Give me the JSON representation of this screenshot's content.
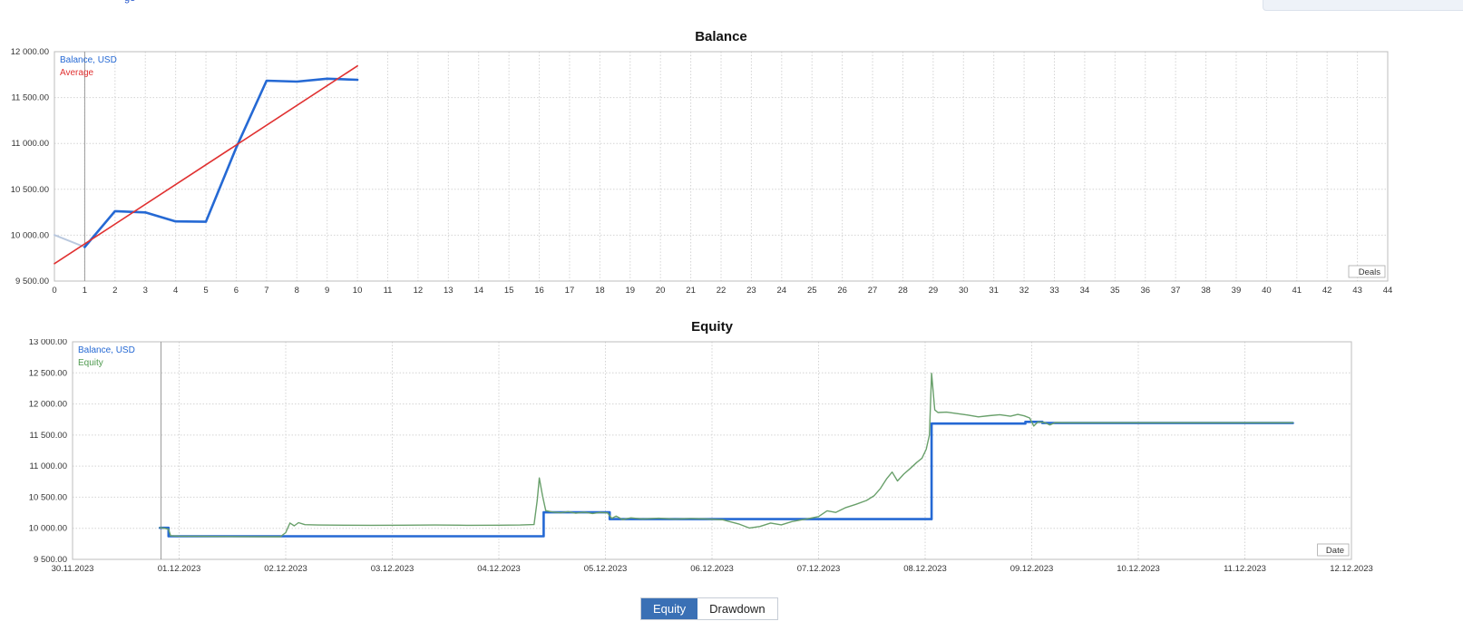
{
  "page": {
    "top_left_fragment": "ge"
  },
  "tabs": [
    {
      "label": "Equity"
    },
    {
      "label": "Drawdown"
    }
  ],
  "colors": {
    "balance_line": "#2569d4",
    "average_line": "#e03131",
    "equity_line": "#69a06b",
    "initial_segment": "#b9c8de",
    "grid": "#d4d4d4",
    "border": "#bdbdbd",
    "marker": "#9b9b9b",
    "tick_text": "#333333",
    "active_tab": "#3a70b5"
  },
  "chart_data": [
    {
      "type": "line",
      "title": "Balance",
      "xlabel": "Deals",
      "grid": true,
      "legend_position": "top-left",
      "legend": [
        {
          "label": "Balance, USD",
          "color": "#2569d4"
        },
        {
          "label": "Average",
          "color": "#e03131"
        }
      ],
      "xlim": [
        0,
        44
      ],
      "ylim": [
        9500,
        12000
      ],
      "marker_x": 1,
      "yticks": [
        {
          "v": 9500,
          "l": "9 500.00"
        },
        {
          "v": 10000,
          "l": "10 000.00"
        },
        {
          "v": 10500,
          "l": "10 500.00"
        },
        {
          "v": 11000,
          "l": "11 000.00"
        },
        {
          "v": 11500,
          "l": "11 500.00"
        },
        {
          "v": 12000,
          "l": "12 000.00"
        }
      ],
      "xticks": [
        {
          "v": 0,
          "l": "0"
        },
        {
          "v": 1,
          "l": "1"
        },
        {
          "v": 2,
          "l": "2"
        },
        {
          "v": 3,
          "l": "3"
        },
        {
          "v": 4,
          "l": "4"
        },
        {
          "v": 5,
          "l": "5"
        },
        {
          "v": 6,
          "l": "6"
        },
        {
          "v": 7,
          "l": "7"
        },
        {
          "v": 8,
          "l": "8"
        },
        {
          "v": 9,
          "l": "9"
        },
        {
          "v": 10,
          "l": "10"
        },
        {
          "v": 11,
          "l": "11"
        },
        {
          "v": 12,
          "l": "12"
        },
        {
          "v": 13,
          "l": "13"
        },
        {
          "v": 14,
          "l": "14"
        },
        {
          "v": 15,
          "l": "15"
        },
        {
          "v": 16,
          "l": "16"
        },
        {
          "v": 17,
          "l": "17"
        },
        {
          "v": 18,
          "l": "18"
        },
        {
          "v": 19,
          "l": "19"
        },
        {
          "v": 20,
          "l": "20"
        },
        {
          "v": 21,
          "l": "21"
        },
        {
          "v": 22,
          "l": "22"
        },
        {
          "v": 23,
          "l": "23"
        },
        {
          "v": 24,
          "l": "24"
        },
        {
          "v": 25,
          "l": "25"
        },
        {
          "v": 26,
          "l": "26"
        },
        {
          "v": 27,
          "l": "27"
        },
        {
          "v": 28,
          "l": "28"
        },
        {
          "v": 29,
          "l": "29"
        },
        {
          "v": 30,
          "l": "30"
        },
        {
          "v": 31,
          "l": "31"
        },
        {
          "v": 32,
          "l": "32"
        },
        {
          "v": 33,
          "l": "33"
        },
        {
          "v": 34,
          "l": "34"
        },
        {
          "v": 35,
          "l": "35"
        },
        {
          "v": 36,
          "l": "36"
        },
        {
          "v": 37,
          "l": "37"
        },
        {
          "v": 38,
          "l": "38"
        },
        {
          "v": 39,
          "l": "39"
        },
        {
          "v": 40,
          "l": "40"
        },
        {
          "v": 41,
          "l": "41"
        },
        {
          "v": 42,
          "l": "42"
        },
        {
          "v": 43,
          "l": "43"
        },
        {
          "v": 44,
          "l": "44"
        }
      ],
      "series": [
        {
          "name": "initial-deposit-segment",
          "color": "#b9c8de",
          "width": 2,
          "points": [
            [
              0,
              10002
            ],
            [
              1,
              9871
            ]
          ]
        },
        {
          "name": "Balance, USD",
          "color": "#2569d4",
          "width": 2.6,
          "points": [
            [
              1,
              9871
            ],
            [
              2,
              10262
            ],
            [
              3,
              10248
            ],
            [
              4,
              10150
            ],
            [
              5,
              10146
            ],
            [
              6,
              10956
            ],
            [
              7,
              11684
            ],
            [
              8,
              11674
            ],
            [
              9,
              11706
            ],
            [
              10,
              11694
            ]
          ]
        },
        {
          "name": "Average",
          "color": "#e03131",
          "width": 1.6,
          "points": [
            [
              0,
              9690
            ],
            [
              10,
              11845
            ]
          ]
        }
      ]
    },
    {
      "type": "line",
      "title": "Equity",
      "xlabel": "Date",
      "grid": true,
      "legend_position": "top-left",
      "legend": [
        {
          "label": "Balance, USD",
          "color": "#2569d4"
        },
        {
          "label": "Equity",
          "color": "#4f9a4f"
        }
      ],
      "xlim": [
        0,
        12
      ],
      "ylim": [
        9500,
        13000
      ],
      "marker_x": 0.83,
      "yticks": [
        {
          "v": 9500,
          "l": "9 500.00"
        },
        {
          "v": 10000,
          "l": "10 000.00"
        },
        {
          "v": 10500,
          "l": "10 500.00"
        },
        {
          "v": 11000,
          "l": "11 000.00"
        },
        {
          "v": 11500,
          "l": "11 500.00"
        },
        {
          "v": 12000,
          "l": "12 000.00"
        },
        {
          "v": 12500,
          "l": "12 500.00"
        },
        {
          "v": 13000,
          "l": "13 000.00"
        }
      ],
      "xticks": [
        {
          "v": 0,
          "l": "30.11.2023"
        },
        {
          "v": 1,
          "l": "01.12.2023"
        },
        {
          "v": 2,
          "l": "02.12.2023"
        },
        {
          "v": 3,
          "l": "03.12.2023"
        },
        {
          "v": 4,
          "l": "04.12.2023"
        },
        {
          "v": 5,
          "l": "05.12.2023"
        },
        {
          "v": 6,
          "l": "06.12.2023"
        },
        {
          "v": 7,
          "l": "07.12.2023"
        },
        {
          "v": 8,
          "l": "08.12.2023"
        },
        {
          "v": 9,
          "l": "09.12.2023"
        },
        {
          "v": 10,
          "l": "10.12.2023"
        },
        {
          "v": 11,
          "l": "11.12.2023"
        },
        {
          "v": 12,
          "l": "12.12.2023"
        }
      ],
      "series": [
        {
          "name": "Balance, USD",
          "color": "#2569d4",
          "width": 2.6,
          "points": [
            [
              0.82,
              10008
            ],
            [
              0.9,
              10008
            ],
            [
              0.9,
              9872
            ],
            [
              4.42,
              9872
            ],
            [
              4.42,
              10257
            ],
            [
              5.04,
              10257
            ],
            [
              5.04,
              10147
            ],
            [
              8.06,
              10147
            ],
            [
              8.06,
              11684
            ],
            [
              8.94,
              11684
            ],
            [
              8.94,
              11712
            ],
            [
              9.1,
              11712
            ],
            [
              9.1,
              11694
            ],
            [
              11.45,
              11694
            ]
          ]
        },
        {
          "name": "Equity",
          "color": "#69a06b",
          "width": 1.4,
          "points": [
            [
              0.82,
              10012
            ],
            [
              0.86,
              10000
            ],
            [
              0.9,
              9985
            ],
            [
              0.92,
              9880
            ],
            [
              1.0,
              9874
            ],
            [
              1.2,
              9870
            ],
            [
              1.45,
              9868
            ],
            [
              1.7,
              9866
            ],
            [
              1.95,
              9864
            ],
            [
              2.0,
              9930
            ],
            [
              2.04,
              10085
            ],
            [
              2.08,
              10040
            ],
            [
              2.12,
              10090
            ],
            [
              2.18,
              10058
            ],
            [
              2.3,
              10052
            ],
            [
              2.55,
              10050
            ],
            [
              2.8,
              10048
            ],
            [
              3.1,
              10050
            ],
            [
              3.4,
              10052
            ],
            [
              3.7,
              10049
            ],
            [
              4.0,
              10050
            ],
            [
              4.2,
              10053
            ],
            [
              4.33,
              10060
            ],
            [
              4.36,
              10450
            ],
            [
              4.38,
              10810
            ],
            [
              4.41,
              10520
            ],
            [
              4.44,
              10285
            ],
            [
              4.5,
              10262
            ],
            [
              4.58,
              10250
            ],
            [
              4.65,
              10268
            ],
            [
              4.72,
              10242
            ],
            [
              4.8,
              10260
            ],
            [
              4.88,
              10238
            ],
            [
              4.95,
              10255
            ],
            [
              5.02,
              10248
            ],
            [
              5.06,
              10160
            ],
            [
              5.1,
              10195
            ],
            [
              5.16,
              10142
            ],
            [
              5.24,
              10168
            ],
            [
              5.35,
              10150
            ],
            [
              5.5,
              10162
            ],
            [
              5.65,
              10148
            ],
            [
              5.8,
              10158
            ],
            [
              5.95,
              10150
            ],
            [
              6.1,
              10138
            ],
            [
              6.25,
              10070
            ],
            [
              6.35,
              10005
            ],
            [
              6.45,
              10030
            ],
            [
              6.55,
              10085
            ],
            [
              6.65,
              10055
            ],
            [
              6.75,
              10108
            ],
            [
              6.88,
              10148
            ],
            [
              7.0,
              10188
            ],
            [
              7.08,
              10282
            ],
            [
              7.16,
              10255
            ],
            [
              7.25,
              10330
            ],
            [
              7.35,
              10385
            ],
            [
              7.45,
              10448
            ],
            [
              7.52,
              10522
            ],
            [
              7.58,
              10640
            ],
            [
              7.64,
              10800
            ],
            [
              7.69,
              10905
            ],
            [
              7.74,
              10762
            ],
            [
              7.8,
              10872
            ],
            [
              7.86,
              10962
            ],
            [
              7.92,
              11058
            ],
            [
              7.97,
              11128
            ],
            [
              8.01,
              11272
            ],
            [
              8.04,
              11500
            ],
            [
              8.06,
              12492
            ],
            [
              8.09,
              11905
            ],
            [
              8.12,
              11862
            ],
            [
              8.2,
              11868
            ],
            [
              8.3,
              11845
            ],
            [
              8.4,
              11822
            ],
            [
              8.5,
              11792
            ],
            [
              8.6,
              11812
            ],
            [
              8.7,
              11828
            ],
            [
              8.8,
              11802
            ],
            [
              8.87,
              11832
            ],
            [
              8.93,
              11808
            ],
            [
              8.98,
              11775
            ],
            [
              9.02,
              11645
            ],
            [
              9.06,
              11712
            ],
            [
              9.12,
              11702
            ],
            [
              9.17,
              11662
            ],
            [
              9.22,
              11700
            ],
            [
              9.35,
              11698
            ],
            [
              9.6,
              11698
            ],
            [
              10.0,
              11698
            ],
            [
              10.5,
              11698
            ],
            [
              11.0,
              11698
            ],
            [
              11.45,
              11698
            ]
          ]
        }
      ]
    }
  ]
}
